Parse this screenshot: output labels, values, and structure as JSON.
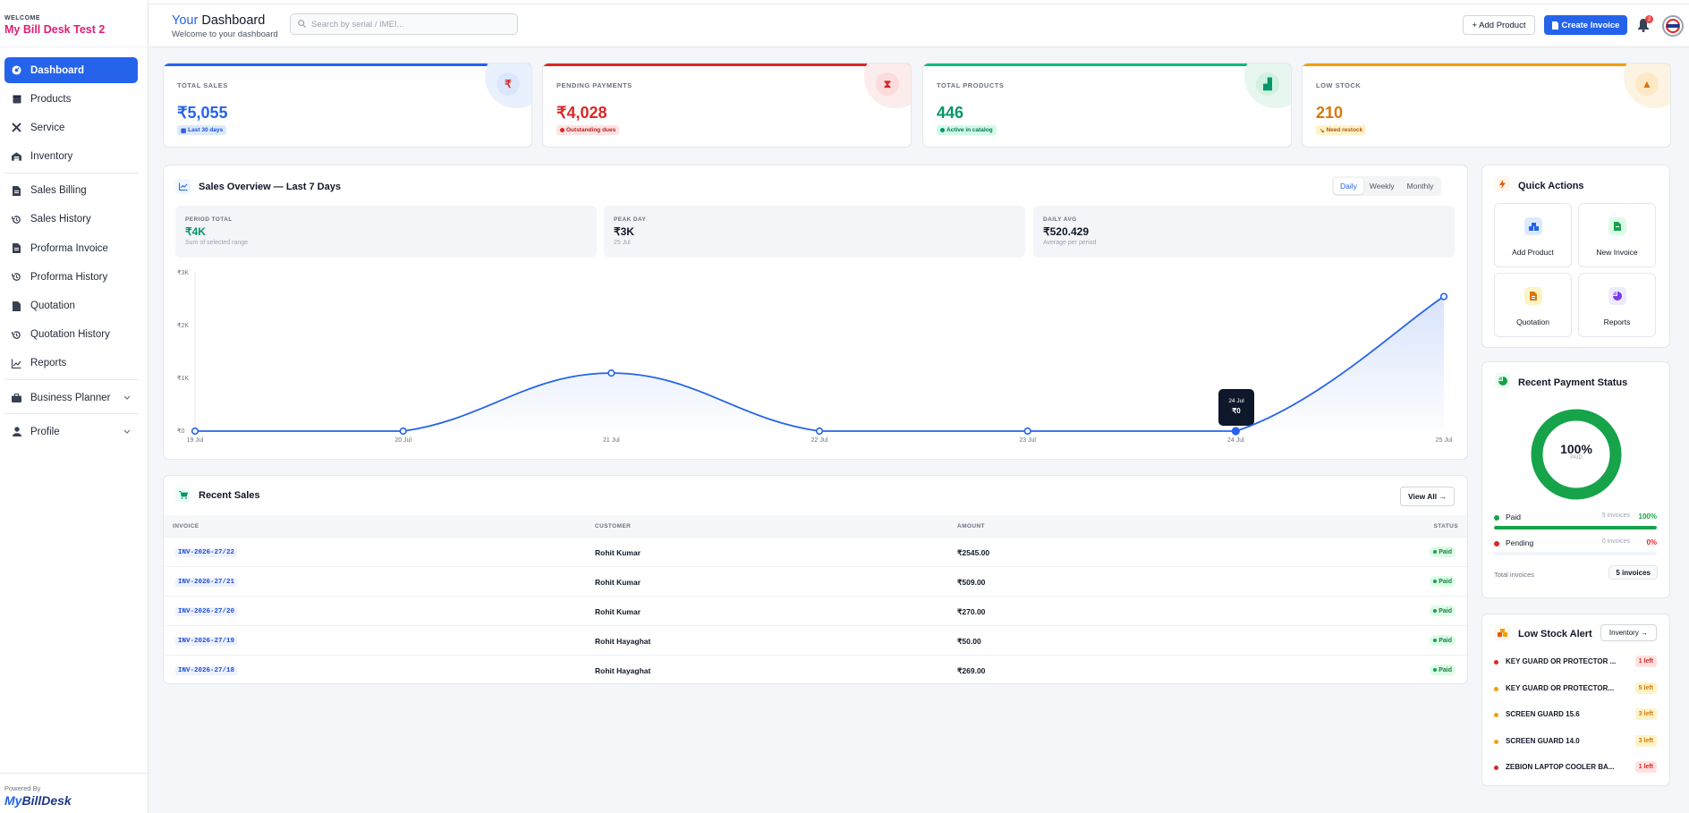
{
  "sidebar": {
    "welcome": "WELCOME",
    "brand": "My Bill Desk Test 2",
    "items": [
      {
        "label": "Dashboard"
      },
      {
        "label": "Products"
      },
      {
        "label": "Service"
      },
      {
        "label": "Inventory"
      },
      {
        "label": "Sales Billing"
      },
      {
        "label": "Sales History"
      },
      {
        "label": "Proforma Invoice"
      },
      {
        "label": "Proforma History"
      },
      {
        "label": "Quotation"
      },
      {
        "label": "Quotation History"
      },
      {
        "label": "Reports"
      },
      {
        "label": "Business Planner"
      },
      {
        "label": "Profile"
      }
    ],
    "powered_by": "Powered By",
    "logo_my": "My",
    "logo_rest": "BillDesk"
  },
  "header": {
    "title_your": "Your",
    "title_rest": " Dashboard",
    "subtitle": "Welcome to your dashboard",
    "search_placeholder": "Search by serial / IMEI...",
    "add_product": "+ Add Product",
    "create_invoice": "Create Invoice",
    "notification_count": "2"
  },
  "stats": [
    {
      "label": "TOTAL SALES",
      "value": "₹5,055",
      "chip": "Last 30 days",
      "color": "#2563eb",
      "icon": "rupee-icon"
    },
    {
      "label": "PENDING PAYMENTS",
      "value": "₹4,028",
      "chip": "Outstanding dues",
      "color": "#dc2626",
      "icon": "hourglass-icon"
    },
    {
      "label": "TOTAL PRODUCTS",
      "value": "446",
      "chip": "Active in catalog",
      "color": "#059669",
      "icon": "boxes-icon"
    },
    {
      "label": "LOW STOCK",
      "value": "210",
      "chip": "Need restock",
      "color": "#d97706",
      "icon": "warning-icon"
    }
  ],
  "sales_overview": {
    "title": "Sales Overview — Last 7 Days",
    "tabs": [
      "Daily",
      "Weekly",
      "Monthly"
    ],
    "active_tab": "Daily",
    "kpis": [
      {
        "label": "PERIOD TOTAL",
        "value": "₹4K",
        "note": "Sum of selected range"
      },
      {
        "label": "PEAK DAY",
        "value": "₹3K",
        "note": "25 Jul"
      },
      {
        "label": "DAILY AVG",
        "value": "₹520.429",
        "note": "Average per period"
      }
    ],
    "tooltip": {
      "date": "24 Jul",
      "value": "₹0"
    }
  },
  "chart_data": {
    "type": "area",
    "x": [
      "19 Jul",
      "20 Jul",
      "21 Jul",
      "22 Jul",
      "23 Jul",
      "24 Jul",
      "25 Jul"
    ],
    "y_ticks": [
      "₹3K",
      "₹2K",
      "₹1K",
      "₹0"
    ],
    "ylim": [
      0,
      3000
    ],
    "series": [
      {
        "values": [
          0,
          0,
          1100,
          0,
          0,
          0,
          2550
        ]
      }
    ],
    "color": "#2563eb"
  },
  "recent_sales": {
    "title": "Recent Sales",
    "view_all": "View All →",
    "columns": [
      "INVOICE",
      "CUSTOMER",
      "AMOUNT",
      "STATUS"
    ],
    "rows": [
      {
        "invoice": "INV-2026-27/22",
        "customer": "Rohit Kumar",
        "amount": "₹2545.00",
        "status": "Paid"
      },
      {
        "invoice": "INV-2026-27/21",
        "customer": "Rohit Kumar",
        "amount": "₹509.00",
        "status": "Paid"
      },
      {
        "invoice": "INV-2026-27/20",
        "customer": "Rohit Kumar",
        "amount": "₹270.00",
        "status": "Paid"
      },
      {
        "invoice": "INV-2026-27/19",
        "customer": "Rohit Hayaghat",
        "amount": "₹50.00",
        "status": "Paid"
      },
      {
        "invoice": "INV-2026-27/18",
        "customer": "Rohit Hayaghat",
        "amount": "₹269.00",
        "status": "Paid"
      }
    ]
  },
  "quick_actions": {
    "title": "Quick Actions",
    "items": [
      {
        "label": "Add Product",
        "icon": "boxes-icon",
        "color": "#2563eb"
      },
      {
        "label": "New Invoice",
        "icon": "file-icon",
        "color": "#16a34a"
      },
      {
        "label": "Quotation",
        "icon": "file-lines-icon",
        "color": "#d97706"
      },
      {
        "label": "Reports",
        "icon": "pie-icon",
        "color": "#7c3aed"
      }
    ]
  },
  "payment_status": {
    "title": "Recent Payment Status",
    "percent": "100%",
    "percent_label": "PAID",
    "paid_fraction": 1.0,
    "rows": [
      {
        "name": "Paid",
        "count": "5 invoices",
        "pct": "100%",
        "color": "#16a34a",
        "fill": 1.0
      },
      {
        "name": "Pending",
        "count": "0 invoices",
        "pct": "0%",
        "color": "#dc2626",
        "fill": 0.0
      }
    ],
    "total_label": "Total invoices",
    "total_value": "5 invoices"
  },
  "low_stock": {
    "title": "Low Stock Alert",
    "button": "Inventory →",
    "items": [
      {
        "name": "KEY GUARD OR PROTECTOR ...",
        "badge": "1 left",
        "color": "#dc2626"
      },
      {
        "name": "KEY GUARD OR PROTECTOR...",
        "badge": "5 left",
        "color": "#f59e0b"
      },
      {
        "name": "SCREEN GUARD 15.6",
        "badge": "3 left",
        "color": "#f59e0b"
      },
      {
        "name": "SCREEN GUARD 14.0",
        "badge": "3 left",
        "color": "#f59e0b"
      },
      {
        "name": "ZEBION LAPTOP COOLER BA...",
        "badge": "1 left",
        "color": "#dc2626"
      }
    ]
  }
}
